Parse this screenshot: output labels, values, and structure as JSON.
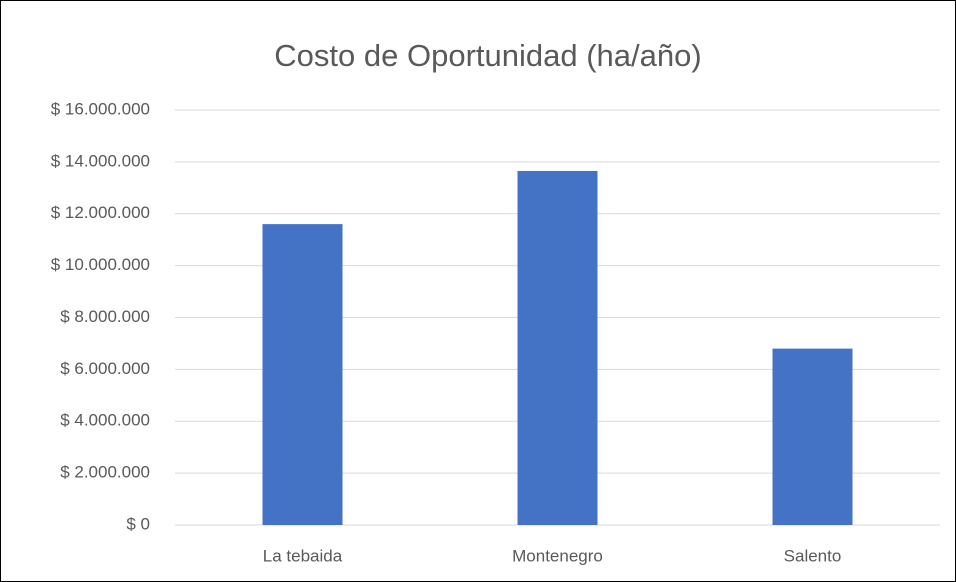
{
  "chart_data": {
    "type": "bar",
    "title": "Costo de Oportunidad (ha/año)",
    "categories": [
      "La tebaida",
      "Montenegro",
      "Salento"
    ],
    "values": [
      11600000,
      13650000,
      6800000
    ],
    "color": "#4472c4",
    "ylim": [
      0,
      16000000
    ],
    "yticks": [
      {
        "value": 0,
        "label": "$ 0"
      },
      {
        "value": 2000000,
        "label": "$ 2.000.000"
      },
      {
        "value": 4000000,
        "label": "$ 4.000.000"
      },
      {
        "value": 6000000,
        "label": "$ 6.000.000"
      },
      {
        "value": 8000000,
        "label": "$ 8.000.000"
      },
      {
        "value": 10000000,
        "label": "$ 10.000.000"
      },
      {
        "value": 12000000,
        "label": "$ 12.000.000"
      },
      {
        "value": 14000000,
        "label": "$ 14.000.000"
      },
      {
        "value": 16000000,
        "label": "$ 16.000.000"
      }
    ],
    "grid": true
  }
}
